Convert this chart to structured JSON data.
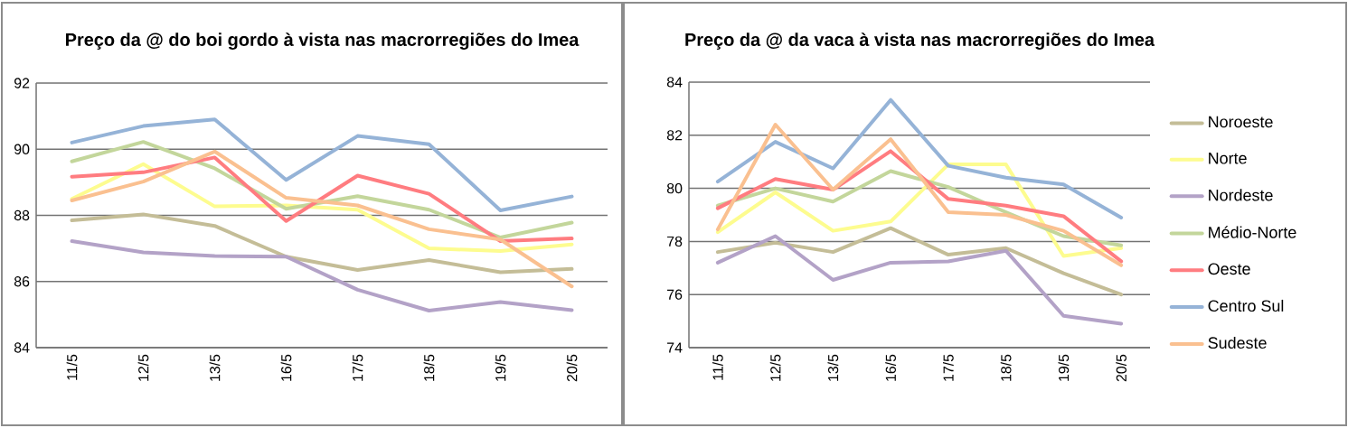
{
  "chart_data": [
    {
      "type": "line",
      "title": "Preço da @ do boi gordo à vista nas macrorregiões do Imea",
      "categories": [
        "11/5",
        "12/5",
        "13/5",
        "16/5",
        "17/5",
        "18/5",
        "19/5",
        "20/5"
      ],
      "ylim": [
        84,
        92
      ],
      "yticks": [
        84,
        86,
        88,
        90,
        92
      ],
      "grid": "y",
      "marker": "none",
      "series": [
        {
          "color": "#c4bd97",
          "values": [
            87.85,
            88.03,
            87.68,
            86.75,
            86.35,
            86.65,
            86.28,
            86.38
          ]
        },
        {
          "color": "#fdfc8f",
          "values": [
            88.5,
            89.55,
            88.27,
            88.3,
            88.17,
            87.0,
            86.92,
            87.12
          ]
        },
        {
          "color": "#b3a2c7",
          "values": [
            87.22,
            86.88,
            86.77,
            86.75,
            85.75,
            85.12,
            85.38,
            85.13
          ]
        },
        {
          "color": "#c3d69b",
          "values": [
            89.63,
            90.22,
            89.42,
            88.2,
            88.58,
            88.17,
            87.33,
            87.78
          ]
        },
        {
          "color": "#ff7c80",
          "values": [
            89.17,
            89.3,
            89.75,
            87.83,
            89.2,
            88.65,
            87.22,
            87.3
          ]
        },
        {
          "color": "#95b3d7",
          "values": [
            90.2,
            90.7,
            90.9,
            89.07,
            90.4,
            90.15,
            88.15,
            88.57
          ]
        },
        {
          "color": "#fac090",
          "values": [
            88.45,
            89.02,
            89.93,
            88.53,
            88.3,
            87.58,
            87.27,
            85.85
          ]
        }
      ]
    },
    {
      "type": "line",
      "title": "Preço da @ da vaca à vista nas macrorregiões do Imea",
      "categories": [
        "11/5",
        "12/5",
        "13/5",
        "16/5",
        "17/5",
        "18/5",
        "19/5",
        "20/5"
      ],
      "ylim": [
        74,
        84
      ],
      "yticks": [
        74,
        76,
        78,
        80,
        82,
        84
      ],
      "grid": "y",
      "marker": "none",
      "legend": "right",
      "series": [
        {
          "name": "Noroeste",
          "color": "#c4bd97",
          "values": [
            77.6,
            77.95,
            77.6,
            78.5,
            77.5,
            77.75,
            76.8,
            76.0
          ]
        },
        {
          "name": "Norte",
          "color": "#fdfc8f",
          "values": [
            78.35,
            79.85,
            78.4,
            78.75,
            80.9,
            80.9,
            77.45,
            77.75
          ]
        },
        {
          "name": "Nordeste",
          "color": "#b3a2c7",
          "values": [
            77.2,
            78.2,
            76.55,
            77.2,
            77.25,
            77.65,
            75.2,
            74.9
          ]
        },
        {
          "name": "Médio-Norte",
          "color": "#c3d69b",
          "values": [
            79.35,
            80.0,
            79.5,
            80.65,
            80.05,
            79.1,
            78.2,
            77.85
          ]
        },
        {
          "name": "Oeste",
          "color": "#ff7c80",
          "values": [
            79.25,
            80.35,
            79.95,
            81.4,
            79.6,
            79.35,
            78.95,
            77.25
          ]
        },
        {
          "name": "Centro Sul",
          "color": "#95b3d7",
          "values": [
            80.25,
            81.75,
            80.75,
            83.33,
            80.85,
            80.4,
            80.15,
            78.9
          ]
        },
        {
          "name": "Sudeste",
          "color": "#fac090",
          "values": [
            78.45,
            82.4,
            79.95,
            81.85,
            79.1,
            79.0,
            78.4,
            77.1
          ]
        }
      ]
    }
  ]
}
